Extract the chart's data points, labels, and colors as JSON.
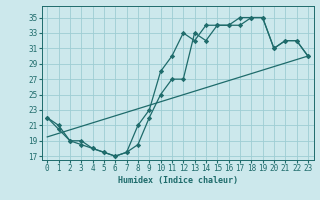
{
  "xlabel": "Humidex (Indice chaleur)",
  "bg_color": "#cce8ec",
  "grid_color": "#9ecdd4",
  "line_color": "#1e6b6b",
  "xlim": [
    -0.5,
    23.5
  ],
  "ylim": [
    16.5,
    36.5
  ],
  "xticks": [
    0,
    1,
    2,
    3,
    4,
    5,
    6,
    7,
    8,
    9,
    10,
    11,
    12,
    13,
    14,
    15,
    16,
    17,
    18,
    19,
    20,
    21,
    22,
    23
  ],
  "yticks": [
    17,
    19,
    21,
    23,
    25,
    27,
    29,
    31,
    33,
    35
  ],
  "line1_x": [
    0,
    1,
    2,
    3,
    4,
    5,
    6,
    7,
    8,
    9,
    10,
    11,
    12,
    13,
    14,
    15,
    16,
    17,
    18,
    19,
    20,
    21,
    22,
    23
  ],
  "line1_y": [
    22,
    21,
    19,
    19,
    18,
    17.5,
    17,
    17.5,
    18.5,
    22,
    25,
    27,
    27,
    33,
    32,
    34,
    34,
    34,
    35,
    35,
    31,
    32,
    32,
    30
  ],
  "line2_x": [
    0,
    1,
    2,
    3,
    4,
    5,
    6,
    7,
    8,
    9,
    10,
    11,
    12,
    13,
    14,
    15,
    16,
    17,
    18,
    19,
    20,
    21,
    22,
    23
  ],
  "line2_y": [
    22,
    20.5,
    19,
    18.5,
    18,
    17.5,
    17,
    17.5,
    21,
    23,
    28,
    30,
    33,
    32,
    34,
    34,
    34,
    35,
    35,
    35,
    31,
    32,
    32,
    30
  ],
  "line3_x": [
    0,
    23
  ],
  "line3_y": [
    19.5,
    30
  ],
  "marker": "D",
  "markersize": 2.2,
  "linewidth": 0.9,
  "tick_fontsize": 5.5,
  "xlabel_fontsize": 6.0
}
